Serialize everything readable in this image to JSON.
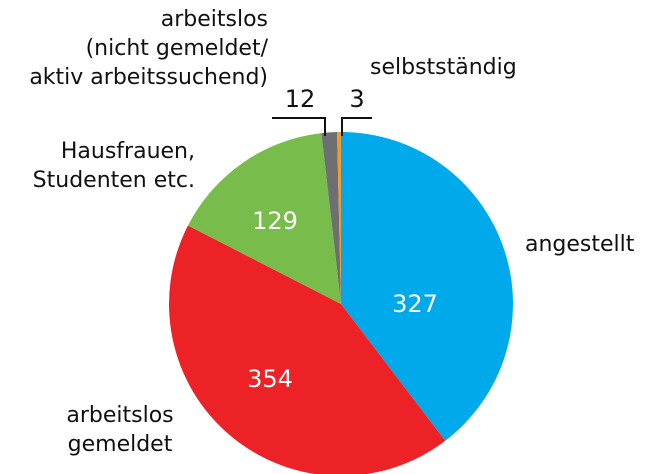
{
  "chart_data": {
    "type": "pie",
    "labels": [
      [
        "angestellt"
      ],
      [
        "arbeitslos",
        "gemeldet"
      ],
      [
        "Hausfrauen,",
        "Studenten etc."
      ],
      [
        "arbeitslos",
        "(nicht gemeldet/",
        "aktiv arbeitssuchend)"
      ],
      [
        "selbstständig"
      ]
    ],
    "values": [
      327,
      354,
      129,
      12,
      3
    ],
    "colors": [
      "#00a9e9",
      "#ed2227",
      "#78bd4b",
      "#6e6f71",
      "#f29a2e"
    ]
  }
}
